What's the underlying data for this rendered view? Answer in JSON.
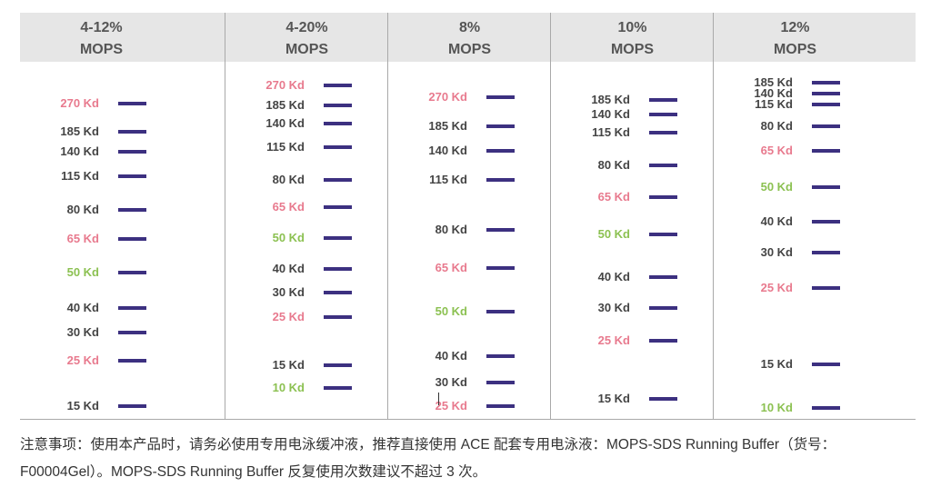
{
  "colors": {
    "black": "#444444",
    "pink": "#e87a8e",
    "green": "#8cc152",
    "bar": "#3c3080",
    "header_bg": "#e6e6e6"
  },
  "columns": [
    {
      "line1": "4-12%",
      "line2": "MOPS",
      "bands": [
        {
          "label": "270 Kd",
          "color": "pink"
        },
        {
          "label": "185 Kd",
          "color": "black"
        },
        {
          "label": "140 Kd",
          "color": "black"
        },
        {
          "label": "115 Kd",
          "color": "black"
        },
        {
          "label": "80 Kd",
          "color": "black"
        },
        {
          "label": "65 Kd",
          "color": "pink"
        },
        {
          "label": "50 Kd",
          "color": "green"
        },
        {
          "label": "40 Kd",
          "color": "black"
        },
        {
          "label": "30 Kd",
          "color": "black"
        },
        {
          "label": "25 Kd",
          "color": "pink"
        },
        {
          "label": "15 Kd",
          "color": "black"
        }
      ]
    },
    {
      "line1": "4-20%",
      "line2": "MOPS",
      "bands": [
        {
          "label": "270 Kd",
          "color": "pink"
        },
        {
          "label": "185 Kd",
          "color": "black"
        },
        {
          "label": "140 Kd",
          "color": "black"
        },
        {
          "label": "115 Kd",
          "color": "black"
        },
        {
          "label": "80 Kd",
          "color": "black"
        },
        {
          "label": "65 Kd",
          "color": "pink"
        },
        {
          "label": "50 Kd",
          "color": "green"
        },
        {
          "label": "40 Kd",
          "color": "black"
        },
        {
          "label": "30 Kd",
          "color": "black"
        },
        {
          "label": "25 Kd",
          "color": "pink"
        },
        {
          "label": "15 Kd",
          "color": "black"
        },
        {
          "label": "10 Kd",
          "color": "green"
        }
      ]
    },
    {
      "line1": "8%",
      "line2": "MOPS",
      "bands": [
        {
          "label": "270 Kd",
          "color": "pink"
        },
        {
          "label": "185 Kd",
          "color": "black"
        },
        {
          "label": "140 Kd",
          "color": "black"
        },
        {
          "label": "115 Kd",
          "color": "black"
        },
        {
          "label": "80 Kd",
          "color": "black"
        },
        {
          "label": "65 Kd",
          "color": "pink"
        },
        {
          "label": "50 Kd",
          "color": "green"
        },
        {
          "label": "40 Kd",
          "color": "black"
        },
        {
          "label": "30 Kd",
          "color": "black"
        },
        {
          "label": "25 Kd",
          "color": "pink"
        }
      ]
    },
    {
      "line1": "10%",
      "line2": "MOPS",
      "bands": [
        {
          "label": "185 Kd",
          "color": "black"
        },
        {
          "label": "140 Kd",
          "color": "black"
        },
        {
          "label": "115 Kd",
          "color": "black"
        },
        {
          "label": "80 Kd",
          "color": "black"
        },
        {
          "label": "65 Kd",
          "color": "pink"
        },
        {
          "label": "50 Kd",
          "color": "green"
        },
        {
          "label": "40 Kd",
          "color": "black"
        },
        {
          "label": "30 Kd",
          "color": "black"
        },
        {
          "label": "25 Kd",
          "color": "pink"
        },
        {
          "label": "15 Kd",
          "color": "black"
        }
      ]
    },
    {
      "line1": "12%",
      "line2": "MOPS",
      "bands": [
        {
          "label": "185 Kd",
          "color": "black"
        },
        {
          "label": "140 Kd",
          "color": "black"
        },
        {
          "label": "115 Kd",
          "color": "black"
        },
        {
          "label": "80 Kd",
          "color": "black"
        },
        {
          "label": "65 Kd",
          "color": "pink"
        },
        {
          "label": "50 Kd",
          "color": "green"
        },
        {
          "label": "40 Kd",
          "color": "black"
        },
        {
          "label": "30 Kd",
          "color": "black"
        },
        {
          "label": "25 Kd",
          "color": "pink"
        },
        {
          "label": "15 Kd",
          "color": "black"
        },
        {
          "label": "10 Kd",
          "color": "green"
        }
      ]
    }
  ],
  "note": {
    "line1": "注意事项：使用本产品时，请务必使用专用电泳缓冲液，推荐直接使用 ACE 配套专用电泳液：MOPS-SDS Running Buffer（货号：",
    "line2": "F00004Gel）。MOPS-SDS Running Buffer 反复使用次数建议不超过 3 次。"
  }
}
